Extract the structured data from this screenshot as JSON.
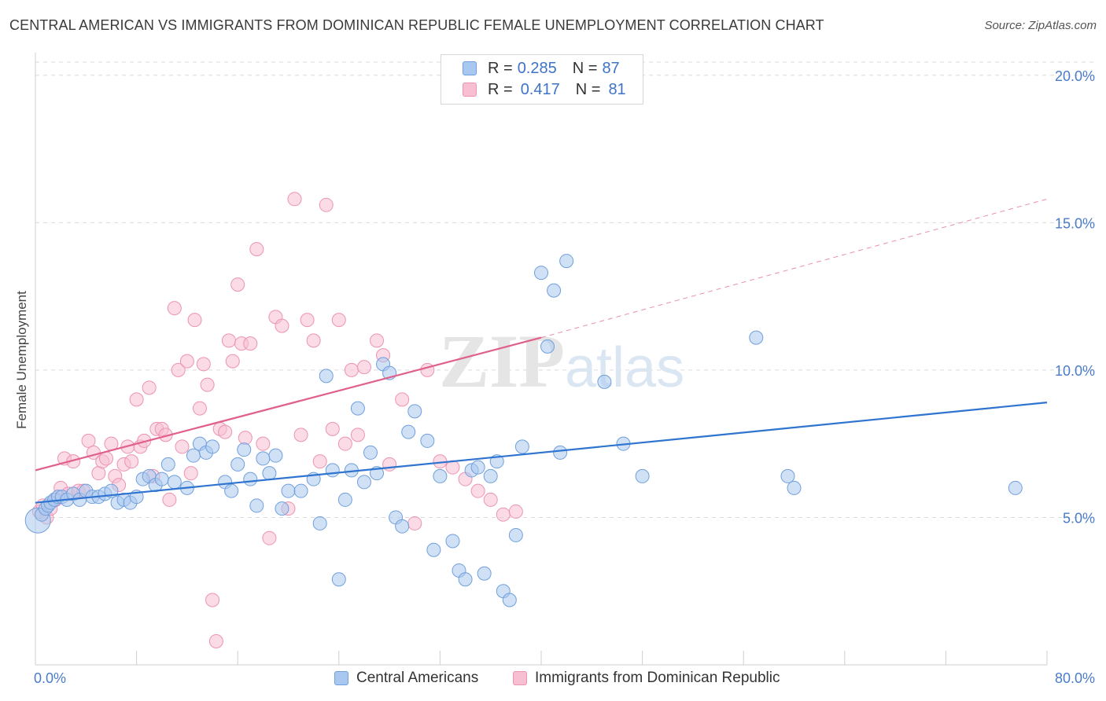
{
  "title": "CENTRAL AMERICAN VS IMMIGRANTS FROM DOMINICAN REPUBLIC FEMALE UNEMPLOYMENT CORRELATION CHART",
  "source": "Source: ZipAtlas.com",
  "watermark": {
    "zip": "ZIP",
    "atlas": "atlas"
  },
  "legend": {
    "rows": [
      {
        "r_label": "R = ",
        "r_value": "0.285",
        "n_label": "N = ",
        "n_value": "87"
      },
      {
        "r_label": "R = ",
        "r_value": "0.417",
        "n_label": "N = ",
        "n_value": "81"
      }
    ]
  },
  "bottom_legend": {
    "series_a": "Central Americans",
    "series_b": "Immigrants from Dominican Republic"
  },
  "colors": {
    "blue_fill": "#a9c8ef",
    "blue_stroke": "#6f9fdc",
    "blue_line": "#2f74d0",
    "pink_fill": "#f7bfd1",
    "pink_stroke": "#ec93b1",
    "pink_line": "#e0608a",
    "grid": "#d9d9d9",
    "tick_text": "#4a7cc9"
  },
  "chart_data": {
    "type": "scatter",
    "title": "CENTRAL AMERICAN VS IMMIGRANTS FROM DOMINICAN REPUBLIC FEMALE UNEMPLOYMENT CORRELATION CHART",
    "xlabel": "",
    "ylabel": "Female Unemployment",
    "xlim": [
      0,
      80
    ],
    "ylim": [
      0,
      20.5
    ],
    "x_tick_labels": [
      "0.0%",
      "80.0%"
    ],
    "y_ticks": [
      5,
      10,
      15,
      20
    ],
    "y_tick_labels": [
      "5.0%",
      "10.0%",
      "15.0%",
      "20.0%"
    ],
    "grid": true,
    "series": [
      {
        "name": "Central Americans",
        "color": "blue",
        "R": 0.285,
        "N": 87,
        "trend": {
          "x0": 0,
          "y0": 5.5,
          "x1": 80,
          "y1": 8.9,
          "style": "solid"
        },
        "points": [
          [
            0.2,
            4.9
          ],
          [
            0.5,
            5.1
          ],
          [
            0.8,
            5.3
          ],
          [
            1.0,
            5.4
          ],
          [
            1.2,
            5.5
          ],
          [
            1.5,
            5.6
          ],
          [
            1.8,
            5.7
          ],
          [
            2.1,
            5.7
          ],
          [
            2.5,
            5.6
          ],
          [
            3.0,
            5.8
          ],
          [
            3.5,
            5.6
          ],
          [
            4.0,
            5.9
          ],
          [
            4.5,
            5.7
          ],
          [
            5.0,
            5.7
          ],
          [
            5.5,
            5.8
          ],
          [
            6.0,
            5.9
          ],
          [
            6.5,
            5.5
          ],
          [
            7.0,
            5.6
          ],
          [
            7.5,
            5.5
          ],
          [
            8.0,
            5.7
          ],
          [
            8.5,
            6.3
          ],
          [
            9.0,
            6.4
          ],
          [
            9.5,
            6.1
          ],
          [
            10.0,
            6.3
          ],
          [
            10.5,
            6.8
          ],
          [
            11.0,
            6.2
          ],
          [
            12.0,
            6.0
          ],
          [
            12.5,
            7.1
          ],
          [
            13.0,
            7.5
          ],
          [
            13.5,
            7.2
          ],
          [
            14.0,
            7.4
          ],
          [
            15.0,
            6.2
          ],
          [
            15.5,
            5.9
          ],
          [
            16.0,
            6.8
          ],
          [
            16.5,
            7.3
          ],
          [
            17.0,
            6.3
          ],
          [
            17.5,
            5.4
          ],
          [
            18.0,
            7.0
          ],
          [
            18.5,
            6.5
          ],
          [
            19.0,
            7.1
          ],
          [
            19.5,
            5.3
          ],
          [
            20.0,
            5.9
          ],
          [
            21.0,
            5.9
          ],
          [
            22.0,
            6.3
          ],
          [
            22.5,
            4.8
          ],
          [
            23.0,
            9.8
          ],
          [
            23.5,
            6.6
          ],
          [
            24.0,
            2.9
          ],
          [
            24.5,
            5.6
          ],
          [
            25.0,
            6.6
          ],
          [
            25.5,
            8.7
          ],
          [
            26.0,
            6.2
          ],
          [
            26.5,
            7.2
          ],
          [
            27.0,
            6.5
          ],
          [
            27.5,
            10.2
          ],
          [
            28.0,
            9.9
          ],
          [
            28.5,
            5.0
          ],
          [
            29.0,
            4.7
          ],
          [
            29.5,
            7.9
          ],
          [
            30.0,
            8.6
          ],
          [
            31.0,
            7.6
          ],
          [
            31.5,
            3.9
          ],
          [
            32.0,
            6.4
          ],
          [
            33.0,
            4.2
          ],
          [
            33.5,
            3.2
          ],
          [
            34.0,
            2.9
          ],
          [
            34.5,
            6.6
          ],
          [
            35.0,
            6.7
          ],
          [
            35.5,
            3.1
          ],
          [
            36.0,
            6.4
          ],
          [
            36.5,
            6.9
          ],
          [
            37.0,
            2.5
          ],
          [
            37.5,
            2.2
          ],
          [
            38.0,
            4.4
          ],
          [
            38.5,
            7.4
          ],
          [
            40.0,
            13.3
          ],
          [
            40.5,
            10.8
          ],
          [
            41.0,
            12.7
          ],
          [
            41.5,
            7.2
          ],
          [
            42.0,
            13.7
          ],
          [
            45.0,
            9.6
          ],
          [
            46.5,
            7.5
          ],
          [
            48.0,
            6.4
          ],
          [
            57.0,
            11.1
          ],
          [
            59.5,
            6.4
          ],
          [
            60.0,
            6.0
          ],
          [
            77.5,
            6.0
          ]
        ]
      },
      {
        "name": "Immigrants from Dominican Republic",
        "color": "pink",
        "R": 0.417,
        "N": 81,
        "trend": {
          "x0": 0,
          "y0": 6.6,
          "x1": 40,
          "y1": 11.1,
          "dashed_to_x": 80,
          "dashed_to_y": 15.8,
          "style": "solid-then-dashed"
        },
        "points": [
          [
            0.3,
            5.2
          ],
          [
            0.6,
            5.4
          ],
          [
            0.9,
            5.0
          ],
          [
            1.2,
            5.3
          ],
          [
            1.6,
            5.6
          ],
          [
            2.0,
            6.0
          ],
          [
            2.3,
            7.0
          ],
          [
            2.6,
            5.8
          ],
          [
            3.0,
            6.9
          ],
          [
            3.4,
            5.9
          ],
          [
            3.8,
            5.9
          ],
          [
            4.2,
            7.6
          ],
          [
            4.6,
            7.2
          ],
          [
            5.0,
            6.5
          ],
          [
            5.3,
            6.9
          ],
          [
            5.6,
            7.0
          ],
          [
            6.0,
            7.5
          ],
          [
            6.3,
            6.4
          ],
          [
            6.6,
            6.1
          ],
          [
            7.0,
            6.8
          ],
          [
            7.3,
            7.4
          ],
          [
            7.6,
            6.9
          ],
          [
            8.0,
            9.0
          ],
          [
            8.3,
            7.4
          ],
          [
            8.6,
            7.6
          ],
          [
            9.0,
            9.4
          ],
          [
            9.3,
            6.4
          ],
          [
            9.6,
            8.0
          ],
          [
            10.0,
            8.0
          ],
          [
            10.3,
            7.8
          ],
          [
            10.6,
            5.6
          ],
          [
            11.0,
            12.1
          ],
          [
            11.3,
            10.0
          ],
          [
            11.6,
            7.4
          ],
          [
            12.0,
            10.3
          ],
          [
            12.3,
            6.5
          ],
          [
            12.6,
            11.7
          ],
          [
            13.0,
            8.7
          ],
          [
            13.3,
            10.2
          ],
          [
            13.6,
            9.5
          ],
          [
            14.0,
            2.2
          ],
          [
            14.3,
            0.8
          ],
          [
            14.6,
            8.0
          ],
          [
            15.0,
            7.9
          ],
          [
            15.3,
            11.0
          ],
          [
            15.6,
            10.3
          ],
          [
            16.0,
            12.9
          ],
          [
            16.3,
            10.9
          ],
          [
            16.6,
            7.7
          ],
          [
            17.0,
            10.9
          ],
          [
            17.5,
            14.1
          ],
          [
            18.0,
            7.5
          ],
          [
            18.5,
            4.3
          ],
          [
            19.0,
            11.8
          ],
          [
            19.5,
            11.5
          ],
          [
            20.0,
            5.3
          ],
          [
            20.5,
            15.8
          ],
          [
            21.0,
            7.8
          ],
          [
            21.5,
            11.7
          ],
          [
            22.0,
            11.0
          ],
          [
            22.5,
            6.9
          ],
          [
            23.0,
            15.6
          ],
          [
            23.5,
            8.0
          ],
          [
            24.0,
            11.7
          ],
          [
            24.5,
            7.5
          ],
          [
            25.0,
            10.0
          ],
          [
            25.5,
            7.8
          ],
          [
            26.0,
            10.1
          ],
          [
            27.0,
            11.0
          ],
          [
            27.5,
            10.5
          ],
          [
            28.0,
            6.8
          ],
          [
            29.0,
            9.0
          ],
          [
            30.0,
            4.8
          ],
          [
            31.0,
            10.0
          ],
          [
            32.0,
            6.9
          ],
          [
            33.0,
            6.7
          ],
          [
            34.0,
            6.3
          ],
          [
            35.0,
            5.9
          ],
          [
            36.0,
            5.6
          ],
          [
            37.0,
            5.1
          ],
          [
            38.0,
            5.2
          ]
        ]
      }
    ]
  }
}
